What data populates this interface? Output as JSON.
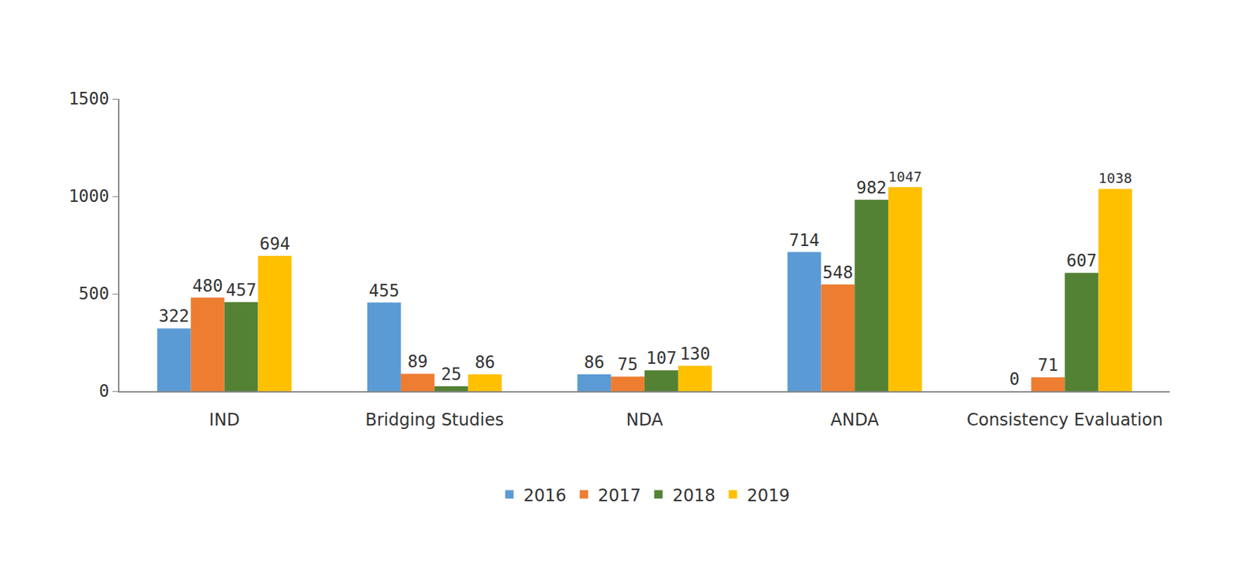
{
  "chart_data": {
    "type": "bar",
    "categories": [
      "IND",
      "Bridging Studies",
      "NDA",
      "ANDA",
      "Consistency Evaluation"
    ],
    "series": [
      {
        "name": "2016",
        "color": "#5b9bd5",
        "values": [
          322,
          455,
          86,
          714,
          0
        ]
      },
      {
        "name": "2017",
        "color": "#ed7d31",
        "values": [
          480,
          89,
          75,
          548,
          71
        ]
      },
      {
        "name": "2018",
        "color": "#548235",
        "values": [
          457,
          25,
          107,
          982,
          607
        ]
      },
      {
        "name": "2019",
        "color": "#ffc000",
        "values": [
          694,
          86,
          130,
          1047,
          1038
        ]
      }
    ],
    "ylim": [
      0,
      1500
    ],
    "yticks": [
      0,
      500,
      1000,
      1500
    ],
    "grid": false,
    "legend": "bottom",
    "data_labels": true
  }
}
